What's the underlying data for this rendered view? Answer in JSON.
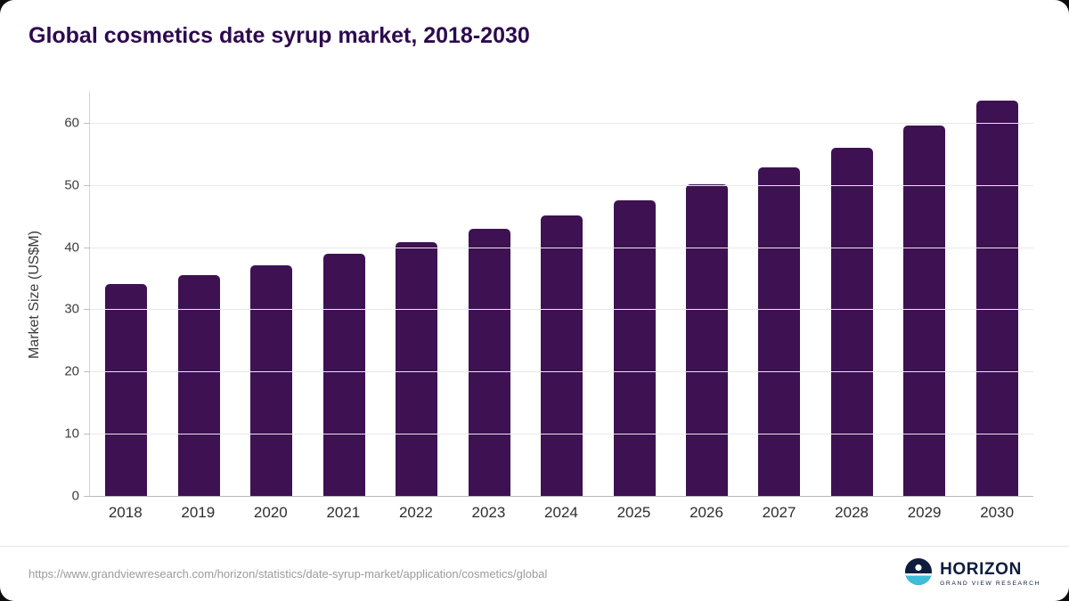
{
  "title": "Global cosmetics date syrup market, 2018-2030",
  "source_url": "https://www.grandviewresearch.com/horizon/statistics/date-syrup-market/application/cosmetics/global",
  "logo": {
    "name": "HORIZON",
    "subtitle": "GRAND VIEW RESEARCH"
  },
  "colors": {
    "bar": "#3e1152",
    "title": "#2d0a4e",
    "gridline": "#e8e8e8",
    "tick_text": "#3d3d3d",
    "footer_text": "#9b9b9b",
    "logo_navy": "#0e1c3d",
    "logo_teal": "#3fbdd8"
  },
  "chart_data": {
    "type": "bar",
    "title": "Global cosmetics date syrup market, 2018-2030",
    "categories": [
      "2018",
      "2019",
      "2020",
      "2021",
      "2022",
      "2023",
      "2024",
      "2025",
      "2026",
      "2027",
      "2028",
      "2029",
      "2030"
    ],
    "values": [
      34.1,
      35.5,
      37.1,
      39.0,
      40.8,
      42.9,
      45.1,
      47.5,
      50.1,
      52.9,
      56.0,
      59.5,
      63.5
    ],
    "xlabel": "",
    "ylabel": "Market Size (US$M)",
    "ylim": [
      0,
      65
    ],
    "yticks": [
      0,
      10,
      20,
      30,
      40,
      50,
      60
    ],
    "grid": "horizontal",
    "legend": "none"
  }
}
